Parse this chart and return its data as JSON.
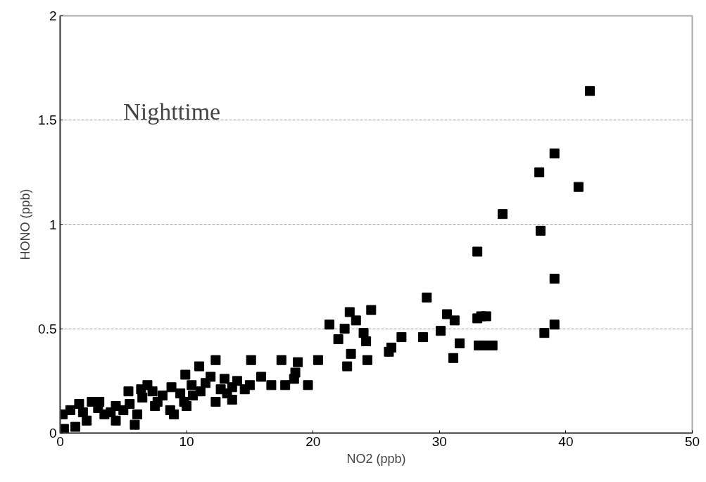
{
  "chart_data": {
    "type": "scatter",
    "xlabel": "NO2 (ppb)",
    "ylabel": "HONO (ppb)",
    "annotations": [
      "Nighttime"
    ],
    "marker": "square",
    "grid": "y",
    "xlim": [
      0,
      50
    ],
    "xticks": [
      0,
      10,
      20,
      30,
      40,
      50
    ],
    "ylim": [
      0,
      2
    ],
    "yticks": [
      0,
      0.5,
      1,
      1.5,
      2
    ],
    "series": [
      {
        "color": "#000000",
        "x": [
          41.9,
          39.1,
          37.9,
          41.0,
          35.0,
          33.0,
          38.0,
          39.1,
          39.1,
          38.3,
          33.0,
          33.7,
          33.1,
          34.2,
          29.0,
          30.6,
          31.2,
          33.3,
          30.1,
          28.7,
          31.6,
          33.5,
          31.1,
          27.0,
          26.2,
          26.0,
          24.6,
          22.9,
          23.4,
          21.3,
          22.5,
          22.0,
          24.0,
          24.2,
          23.0,
          24.3,
          22.7,
          17.5,
          18.8,
          20.4,
          18.6,
          18.5,
          16.7,
          17.8,
          19.6,
          12.3,
          15.1,
          9.9,
          11.0,
          15.9,
          0.2,
          0.3,
          0.8,
          1.5,
          2.5,
          3.1,
          2.1,
          3.5,
          4.4,
          4.4,
          5.4,
          6.4,
          7.3,
          5.9,
          6.1,
          5.5,
          7.7,
          8.7,
          9.0,
          8.1,
          9.8,
          10.0,
          11.1,
          11.9,
          12.7,
          12.3,
          13.0,
          13.6,
          14.6,
          13.6,
          15.0,
          8.8,
          6.9,
          10.4,
          1.2,
          1.8,
          3.0,
          4.0,
          5.0,
          6.5,
          7.5,
          9.5,
          10.5,
          11.5,
          13.2,
          14.0
        ],
        "values": [
          1.64,
          1.34,
          1.25,
          1.18,
          1.05,
          0.87,
          0.97,
          0.74,
          0.52,
          0.48,
          0.55,
          0.56,
          0.42,
          0.42,
          0.65,
          0.57,
          0.54,
          0.56,
          0.49,
          0.46,
          0.43,
          0.42,
          0.36,
          0.46,
          0.41,
          0.39,
          0.59,
          0.58,
          0.54,
          0.52,
          0.5,
          0.45,
          0.48,
          0.44,
          0.38,
          0.35,
          0.32,
          0.35,
          0.34,
          0.35,
          0.29,
          0.26,
          0.23,
          0.23,
          0.23,
          0.35,
          0.35,
          0.28,
          0.32,
          0.27,
          0.09,
          0.02,
          0.11,
          0.14,
          0.15,
          0.15,
          0.06,
          0.09,
          0.13,
          0.06,
          0.2,
          0.21,
          0.2,
          0.04,
          0.09,
          0.14,
          0.15,
          0.11,
          0.09,
          0.18,
          0.15,
          0.13,
          0.2,
          0.27,
          0.21,
          0.15,
          0.26,
          0.16,
          0.21,
          0.22,
          0.23,
          0.22,
          0.23,
          0.23,
          0.03,
          0.1,
          0.12,
          0.1,
          0.11,
          0.17,
          0.13,
          0.19,
          0.18,
          0.24,
          0.19,
          0.25
        ]
      }
    ]
  }
}
